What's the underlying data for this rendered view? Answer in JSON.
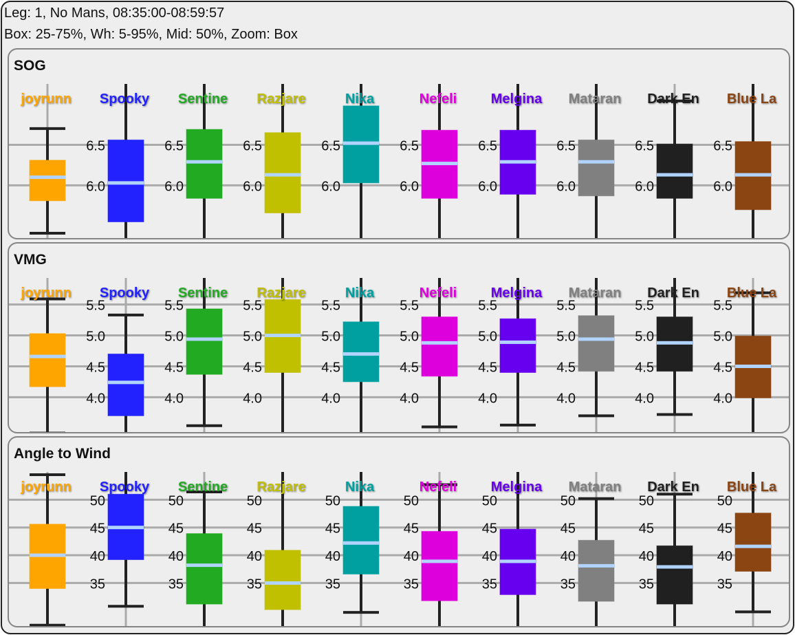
{
  "header": {
    "line1": "Leg: 1, No Mans, 08:35:00-08:59:57",
    "line2": "Box: 25-75%, Wh: 5-95%, Mid: 50%, Zoom: Box"
  },
  "boats": [
    {
      "name": "joyrunn",
      "color": "#ffa500"
    },
    {
      "name": "Spooky",
      "color": "#2222ff"
    },
    {
      "name": "Sentine",
      "color": "#22aa22"
    },
    {
      "name": "Razjare",
      "color": "#c0c000"
    },
    {
      "name": "Nika",
      "color": "#00a0a0"
    },
    {
      "name": "Nefeli",
      "color": "#dd00dd"
    },
    {
      "name": "Melgina",
      "color": "#6600ee"
    },
    {
      "name": "Mataran",
      "color": "#808080"
    },
    {
      "name": "Dark En",
      "color": "#202020"
    },
    {
      "name": "Blue La",
      "color": "#8b4513"
    }
  ],
  "median_color": "#b0d4ff",
  "chart_data": [
    {
      "type": "box",
      "title": "SOG",
      "ylim": [
        5.3,
        7.25
      ],
      "yticks": [
        "6.0",
        "6.5"
      ],
      "grid": true,
      "note_null": "null whisker = extends beyond visible range",
      "series": [
        {
          "name": "joyrunn",
          "whisker_low": 5.41,
          "q1": 5.81,
          "median": 6.1,
          "q3": 6.31,
          "whisker_high": 6.7
        },
        {
          "name": "Spooky",
          "whisker_low": null,
          "q1": 5.55,
          "median": 6.03,
          "q3": 6.56,
          "whisker_high": null
        },
        {
          "name": "Sentine",
          "whisker_low": null,
          "q1": 5.84,
          "median": 6.29,
          "q3": 6.69,
          "whisker_high": null
        },
        {
          "name": "Razjare",
          "whisker_low": null,
          "q1": 5.66,
          "median": 6.13,
          "q3": 6.65,
          "whisker_high": null
        },
        {
          "name": "Nika",
          "whisker_low": null,
          "q1": 6.03,
          "median": 6.52,
          "q3": 6.98,
          "whisker_high": null
        },
        {
          "name": "Nefeli",
          "whisker_low": null,
          "q1": 5.84,
          "median": 6.27,
          "q3": 6.68,
          "whisker_high": null
        },
        {
          "name": "Melgina",
          "whisker_low": null,
          "q1": 5.89,
          "median": 6.29,
          "q3": 6.68,
          "whisker_high": null
        },
        {
          "name": "Mataran",
          "whisker_low": 5.32,
          "q1": 5.87,
          "median": 6.29,
          "q3": 6.56,
          "whisker_high": null
        },
        {
          "name": "Dark En",
          "whisker_low": 5.32,
          "q1": 5.84,
          "median": 6.13,
          "q3": 6.51,
          "whisker_high": 7.04
        },
        {
          "name": "Blue La",
          "whisker_low": null,
          "q1": 5.7,
          "median": 6.13,
          "q3": 6.54,
          "whisker_high": null
        }
      ]
    },
    {
      "type": "box",
      "title": "VMG",
      "ylim": [
        3.37,
        5.93
      ],
      "yticks": [
        "4.0",
        "4.5",
        "5.0",
        "5.5"
      ],
      "grid": true,
      "series": [
        {
          "name": "joyrunn",
          "whisker_low": 3.42,
          "q1": 4.17,
          "median": 4.66,
          "q3": 5.03,
          "whisker_high": 5.59
        },
        {
          "name": "Spooky",
          "whisker_low": null,
          "q1": 3.7,
          "median": 4.24,
          "q3": 4.7,
          "whisker_high": 5.33
        },
        {
          "name": "Sentine",
          "whisker_low": 3.54,
          "q1": 4.37,
          "median": 4.94,
          "q3": 5.43,
          "whisker_high": null
        },
        {
          "name": "Razjare",
          "whisker_low": null,
          "q1": 4.4,
          "median": 5.0,
          "q3": 5.58,
          "whisker_high": null
        },
        {
          "name": "Nika",
          "whisker_low": 3.41,
          "q1": 4.25,
          "median": 4.7,
          "q3": 5.22,
          "whisker_high": null
        },
        {
          "name": "Nefeli",
          "whisker_low": 3.52,
          "q1": 4.34,
          "median": 4.88,
          "q3": 5.3,
          "whisker_high": null
        },
        {
          "name": "Melgina",
          "whisker_low": 3.55,
          "q1": 4.4,
          "median": 4.89,
          "q3": 5.27,
          "whisker_high": null
        },
        {
          "name": "Mataran",
          "whisker_low": 3.7,
          "q1": 4.42,
          "median": 4.94,
          "q3": 5.32,
          "whisker_high": null
        },
        {
          "name": "Dark En",
          "whisker_low": 3.72,
          "q1": 4.42,
          "median": 4.88,
          "q3": 5.3,
          "whisker_high": null
        },
        {
          "name": "Blue La",
          "whisker_low": null,
          "q1": 3.99,
          "median": 4.5,
          "q3": 4.99,
          "whisker_high": 5.69
        }
      ]
    },
    {
      "type": "box",
      "title": "Angle to Wind",
      "ylim": [
        26.5,
        55
      ],
      "yticks": [
        "35",
        "40",
        "45",
        "50"
      ],
      "grid": true,
      "series": [
        {
          "name": "joyrunn",
          "whisker_low": 27.4,
          "q1": 34.0,
          "median": 40.0,
          "q3": 45.6,
          "whisker_high": 54.5
        },
        {
          "name": "Spooky",
          "whisker_low": 30.8,
          "q1": 39.2,
          "median": 45.0,
          "q3": 51.0,
          "whisker_high": null
        },
        {
          "name": "Sentine",
          "whisker_low": null,
          "q1": 31.2,
          "median": 38.2,
          "q3": 43.9,
          "whisker_high": 51.4
        },
        {
          "name": "Razjare",
          "whisker_low": null,
          "q1": 30.2,
          "median": 35.0,
          "q3": 40.9,
          "whisker_high": null
        },
        {
          "name": "Nika",
          "whisker_low": 29.7,
          "q1": 36.6,
          "median": 42.2,
          "q3": 48.8,
          "whisker_high": null
        },
        {
          "name": "Nefeli",
          "whisker_low": null,
          "q1": 31.8,
          "median": 38.9,
          "q3": 44.3,
          "whisker_high": 52.7
        },
        {
          "name": "Melgina",
          "whisker_low": null,
          "q1": 32.9,
          "median": 38.9,
          "q3": 44.7,
          "whisker_high": null
        },
        {
          "name": "Mataran",
          "whisker_low": null,
          "q1": 31.7,
          "median": 38.1,
          "q3": 42.7,
          "whisker_high": 50.2
        },
        {
          "name": "Dark En",
          "whisker_low": null,
          "q1": 31.2,
          "median": 37.9,
          "q3": 41.7,
          "whisker_high": 51.0
        },
        {
          "name": "Blue La",
          "whisker_low": 29.8,
          "q1": 37.1,
          "median": 41.6,
          "q3": 47.6,
          "whisker_high": null
        }
      ]
    }
  ]
}
